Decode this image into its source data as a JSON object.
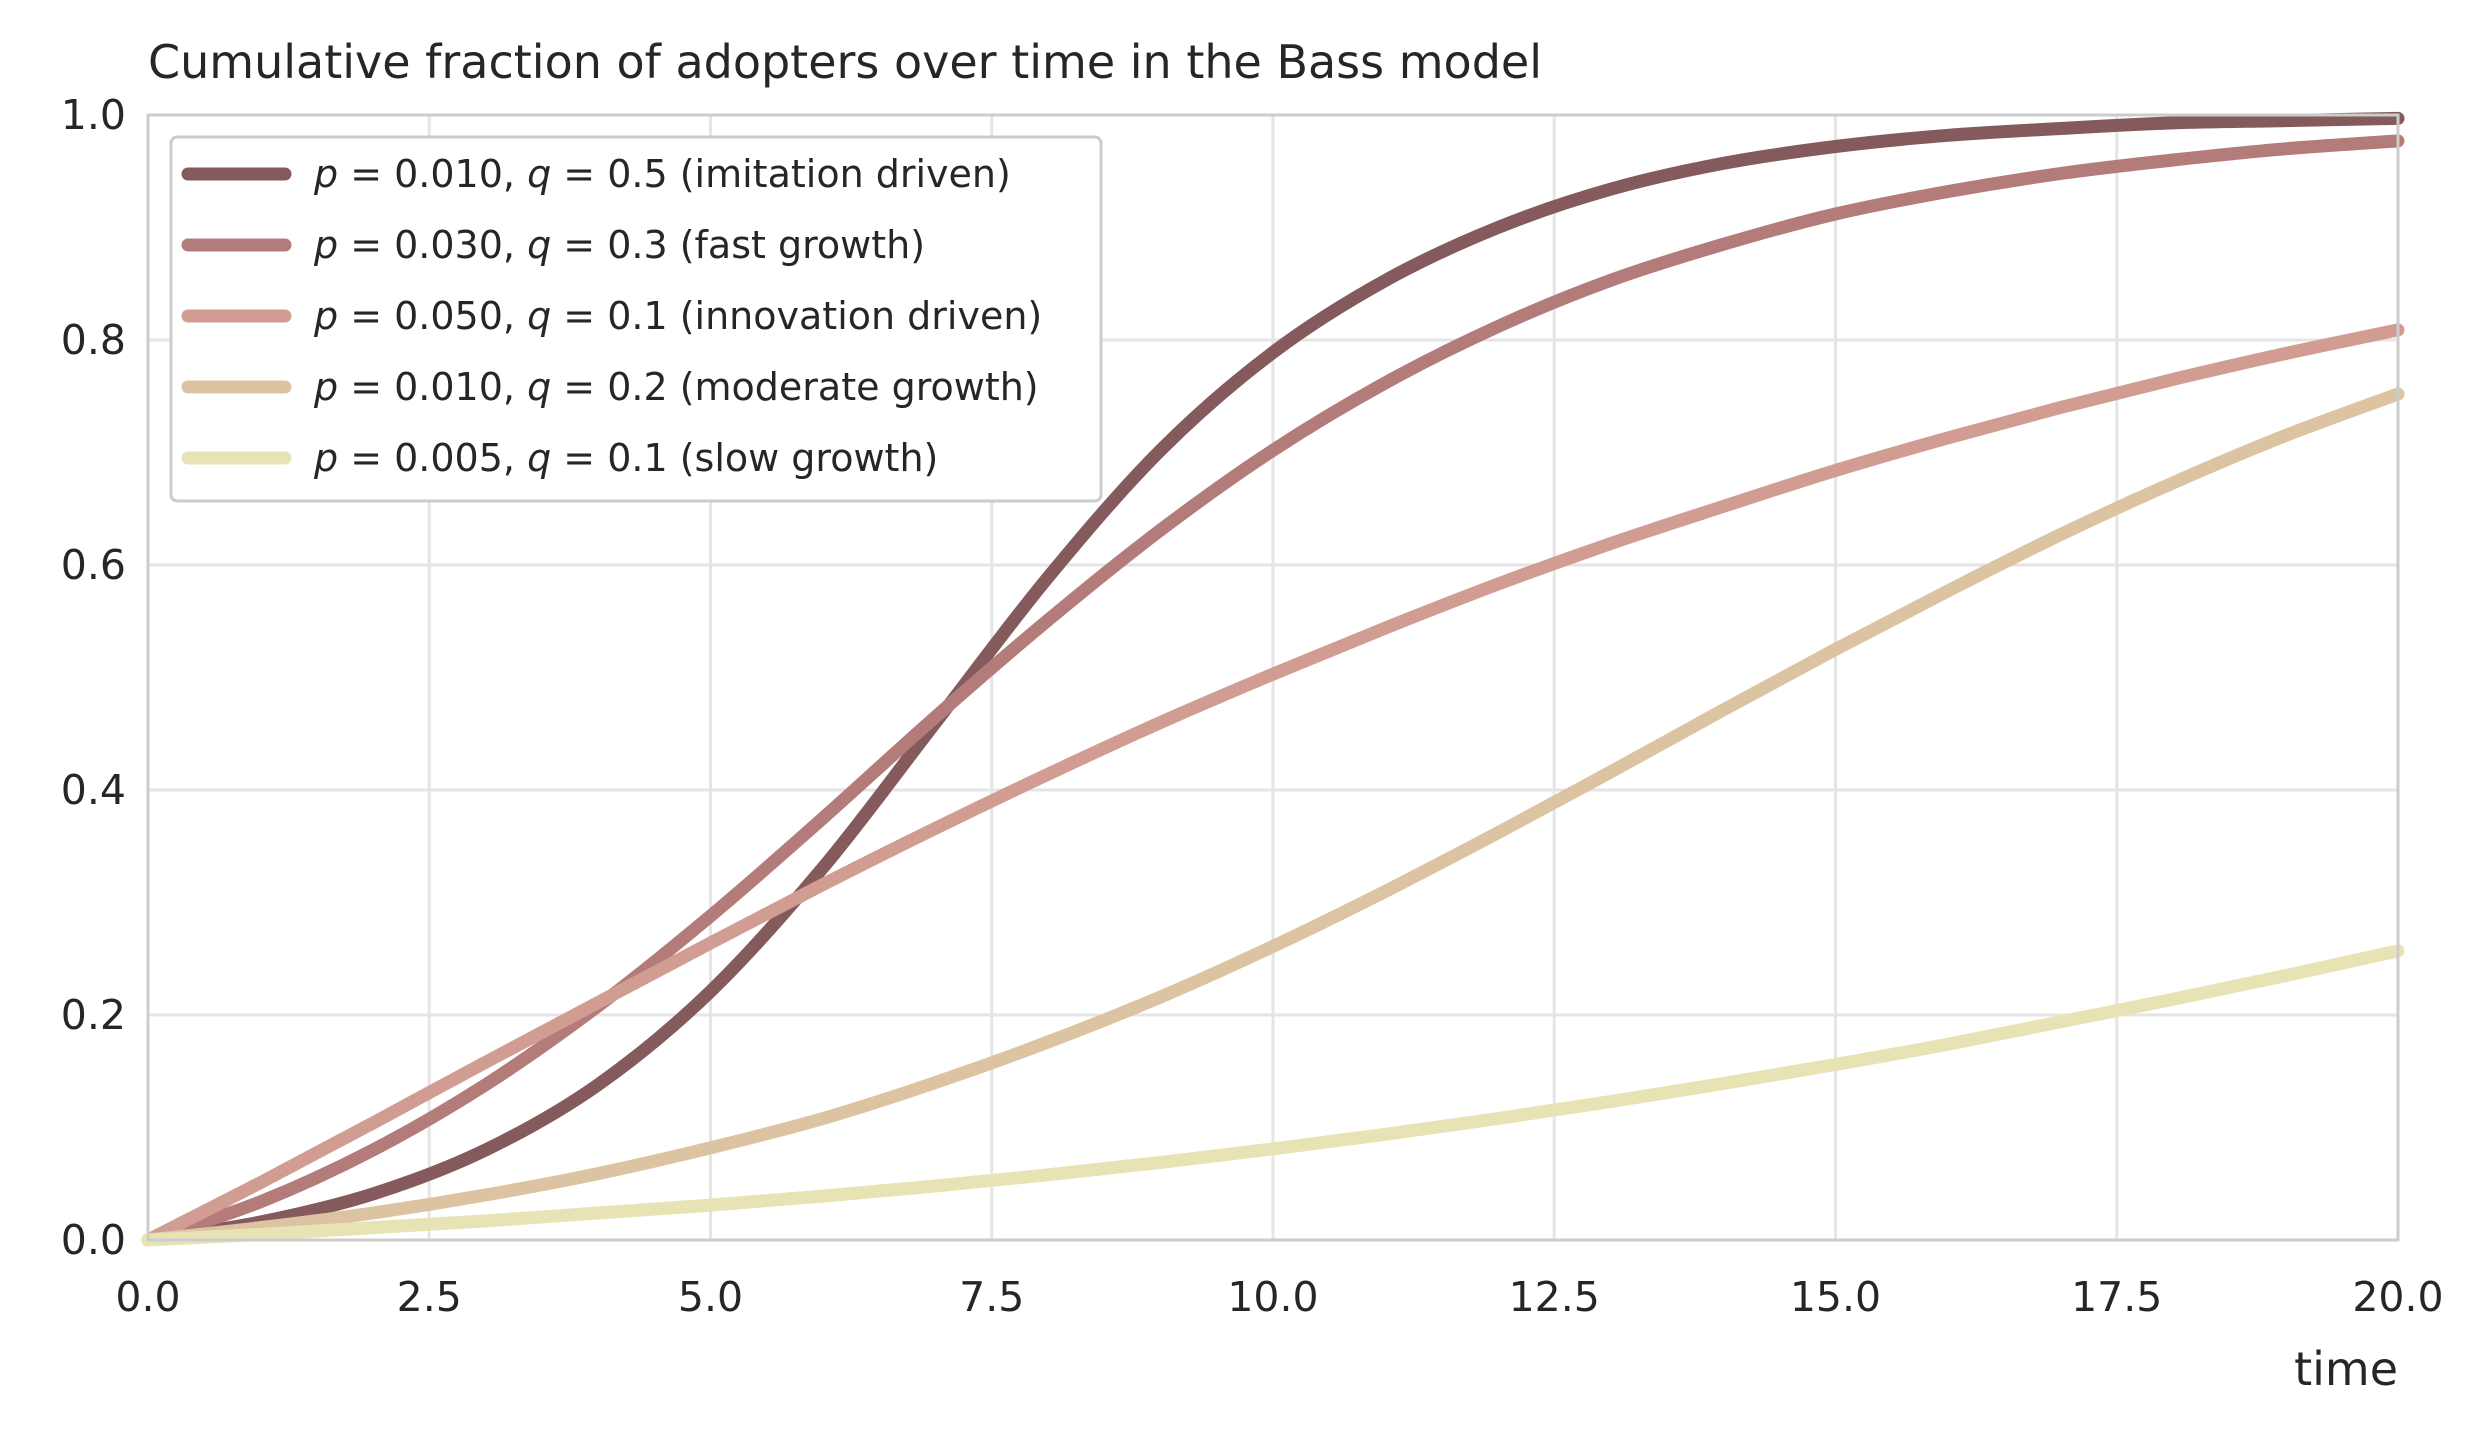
{
  "chart_data": {
    "type": "line",
    "title": "Cumulative fraction of adopters over time in the Bass model",
    "xlabel": "time",
    "ylabel": "",
    "xlim": [
      0,
      20
    ],
    "ylim": [
      0,
      1
    ],
    "xticks": [
      0,
      2.5,
      5,
      7.5,
      10,
      12.5,
      15,
      17.5,
      20
    ],
    "xtick_labels": [
      "0.0",
      "2.5",
      "5.0",
      "7.5",
      "10.0",
      "12.5",
      "15.0",
      "17.5",
      "20.0"
    ],
    "yticks": [
      0,
      0.2,
      0.4,
      0.6,
      0.8,
      1.0
    ],
    "ytick_labels": [
      "0.0",
      "0.2",
      "0.4",
      "0.6",
      "0.8",
      "1.0"
    ],
    "grid": true,
    "legend_position": "top-left",
    "series": [
      {
        "name": "p = 0.010, q = 0.5 (imitation driven)",
        "p_label": "p",
        "p_value": "= 0.010,",
        "q_label": "q",
        "q_value": "= 0.5",
        "note": "(imitation driven)",
        "color": "#845a5c",
        "x": [
          0,
          1,
          2,
          3,
          4,
          5,
          6,
          7,
          8,
          9,
          10,
          11,
          12,
          13,
          14,
          15,
          16,
          17,
          18,
          19,
          20
        ],
        "values": [
          0.0,
          0.016,
          0.041,
          0.08,
          0.138,
          0.221,
          0.331,
          0.46,
          0.589,
          0.702,
          0.789,
          0.853,
          0.9,
          0.934,
          0.957,
          0.972,
          0.982,
          0.988,
          0.993,
          0.995,
          0.997
        ]
      },
      {
        "name": "p = 0.030, q = 0.3 (fast growth)",
        "p_label": "p",
        "p_value": "= 0.030,",
        "q_label": "q",
        "q_value": "= 0.3",
        "note": "(fast growth)",
        "color": "#b47b7b",
        "x": [
          0,
          1,
          2,
          3,
          4,
          5,
          6,
          7,
          8,
          9,
          10,
          11,
          12,
          13,
          14,
          15,
          16,
          17,
          18,
          19,
          20
        ],
        "values": [
          0.0,
          0.034,
          0.08,
          0.138,
          0.208,
          0.288,
          0.375,
          0.465,
          0.551,
          0.631,
          0.702,
          0.762,
          0.812,
          0.853,
          0.885,
          0.912,
          0.932,
          0.948,
          0.96,
          0.97,
          0.977
        ]
      },
      {
        "name": "p = 0.050, q = 0.1 (innovation driven)",
        "p_label": "p",
        "p_value": "= 0.050,",
        "q_label": "q",
        "q_value": "= 0.1",
        "note": "(innovation driven)",
        "color": "#d19d93",
        "x": [
          0,
          1,
          2,
          3,
          4,
          5,
          6,
          7,
          8,
          9,
          10,
          11,
          12,
          13,
          14,
          15,
          16,
          17,
          18,
          19,
          20
        ],
        "values": [
          0.0,
          0.051,
          0.104,
          0.158,
          0.211,
          0.264,
          0.316,
          0.366,
          0.414,
          0.46,
          0.503,
          0.544,
          0.583,
          0.619,
          0.652,
          0.684,
          0.713,
          0.74,
          0.765,
          0.788,
          0.809
        ]
      },
      {
        "name": "p = 0.010, q = 0.2 (moderate growth)",
        "p_label": "p",
        "p_value": "= 0.010,",
        "q_label": "q",
        "q_value": "= 0.2",
        "note": "(moderate growth)",
        "color": "#dcc4a2",
        "x": [
          0,
          1,
          2,
          3,
          4,
          5,
          6,
          7,
          8,
          9,
          10,
          11,
          12,
          13,
          14,
          15,
          16,
          17,
          18,
          19,
          20
        ],
        "values": [
          0.0,
          0.011,
          0.024,
          0.04,
          0.059,
          0.082,
          0.108,
          0.14,
          0.176,
          0.216,
          0.261,
          0.31,
          0.362,
          0.416,
          0.471,
          0.525,
          0.577,
          0.627,
          0.673,
          0.715,
          0.752
        ]
      },
      {
        "name": "p = 0.005, q = 0.1 (slow growth)",
        "p_label": "p",
        "p_value": "= 0.005,",
        "q_label": "q",
        "q_value": "= 0.1",
        "note": "(slow growth)",
        "color": "#e8e3b4",
        "x": [
          0,
          1,
          2,
          3,
          4,
          5,
          6,
          7,
          8,
          9,
          10,
          11,
          12,
          13,
          14,
          15,
          16,
          17,
          18,
          19,
          20
        ],
        "values": [
          0.0,
          0.005,
          0.011,
          0.017,
          0.024,
          0.031,
          0.039,
          0.048,
          0.058,
          0.069,
          0.081,
          0.094,
          0.108,
          0.123,
          0.139,
          0.156,
          0.174,
          0.194,
          0.214,
          0.235,
          0.257
        ]
      }
    ]
  }
}
